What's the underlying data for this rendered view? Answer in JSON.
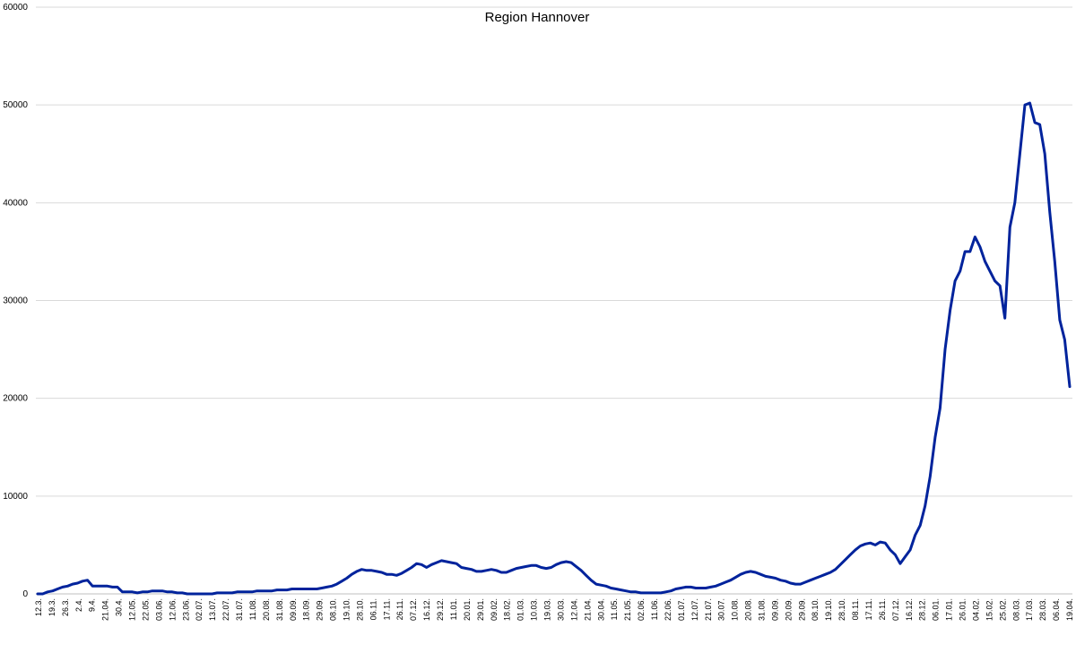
{
  "chart_data": {
    "type": "line",
    "title": "Region Hannover",
    "xlabel": "",
    "ylabel": "",
    "ylim": [
      0,
      60000
    ],
    "yticks": [
      0,
      10000,
      20000,
      30000,
      40000,
      50000,
      60000
    ],
    "ytick_labels": [
      "0",
      "10000",
      "20000",
      "30000",
      "40000",
      "50000",
      "60000"
    ],
    "grid": true,
    "legend": "none",
    "line_color": "#00239c",
    "x_tick_labels": [
      "12.3.",
      "19.3.",
      "26.3.",
      "2.4.",
      "9.4.",
      "21.04.",
      "30.4.",
      "12.05.",
      "22.05.",
      "03.06.",
      "12.06.",
      "23.06.",
      "02.07.",
      "13.07.",
      "22.07.",
      "31.07.",
      "11.08.",
      "20.08.",
      "31.08.",
      "09.09.",
      "18.09.",
      "29.09.",
      "08.10.",
      "19.10.",
      "28.10.",
      "06.11.",
      "17.11.",
      "26.11.",
      "07.12.",
      "16.12.",
      "29.12.",
      "11.01.",
      "20.01.",
      "29.01.",
      "09.02.",
      "18.02.",
      "01.03.",
      "10.03.",
      "19.03.",
      "30.03.",
      "12.04.",
      "21.04.",
      "30.04.",
      "11.05.",
      "21.05.",
      "02.06.",
      "11.06.",
      "22.06.",
      "01.07.",
      "12.07.",
      "21.07.",
      "30.07.",
      "10.08.",
      "20.08.",
      "31.08.",
      "09.09.",
      "20.09.",
      "29.09.",
      "08.10.",
      "19.10.",
      "28.10.",
      "08.11.",
      "17.11.",
      "26.11.",
      "07.12.",
      "16.12.",
      "28.12.",
      "06.01.",
      "17.01.",
      "26.01.",
      "04.02.",
      "15.02.",
      "25.02.",
      "08.03.",
      "17.03.",
      "28.03.",
      "06.04.",
      "19.04."
    ],
    "series": [
      {
        "values": [
          0,
          0,
          200,
          300,
          500,
          700,
          800,
          1000,
          1100,
          1300,
          1400,
          800,
          800,
          800,
          800,
          700,
          700,
          200,
          200,
          200,
          100,
          200,
          200,
          300,
          300,
          300,
          200,
          200,
          100,
          100,
          0,
          0,
          0,
          0,
          0,
          0,
          100,
          100,
          100,
          100,
          200,
          200,
          200,
          200,
          300,
          300,
          300,
          300,
          400,
          400,
          400,
          500,
          500,
          500,
          500,
          500,
          500,
          600,
          700,
          800,
          1000,
          1300,
          1600,
          2000,
          2300,
          2500,
          2400,
          2400,
          2300,
          2200,
          2000,
          2000,
          1900,
          2100,
          2400,
          2700,
          3100,
          3000,
          2700,
          3000,
          3200,
          3400,
          3300,
          3200,
          3100,
          2700,
          2600,
          2500,
          2300,
          2300,
          2400,
          2500,
          2400,
          2200,
          2200,
          2400,
          2600,
          2700,
          2800,
          2900,
          2900,
          2700,
          2600,
          2700,
          3000,
          3200,
          3300,
          3200,
          2800,
          2400,
          1900,
          1400,
          1000,
          900,
          800,
          600,
          500,
          400,
          300,
          200,
          200,
          100,
          100,
          100,
          100,
          100,
          200,
          300,
          500,
          600,
          700,
          700,
          600,
          600,
          600,
          700,
          800,
          1000,
          1200,
          1400,
          1700,
          2000,
          2200,
          2300,
          2200,
          2000,
          1800,
          1700,
          1600,
          1400,
          1300,
          1100,
          1000,
          1000,
          1200,
          1400,
          1600,
          1800,
          2000,
          2200,
          2500,
          3000,
          3500,
          4000,
          4500,
          4900,
          5100,
          5200,
          5000,
          5300,
          5200,
          4500,
          4000,
          3100,
          3800,
          4500,
          6000,
          7000,
          9000,
          12000,
          16000,
          19000,
          25000,
          29000,
          32000,
          33000,
          35000,
          35000,
          36500,
          35500,
          34000,
          33000,
          32000,
          31500,
          28200,
          37500,
          40000,
          45000,
          50000,
          50200,
          48200,
          48000,
          45000,
          39000,
          34000,
          28000,
          26000,
          21200
        ]
      }
    ]
  }
}
